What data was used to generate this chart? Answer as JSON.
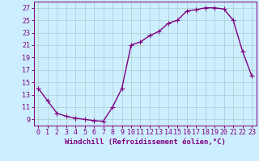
{
  "x": [
    0,
    1,
    2,
    3,
    4,
    5,
    6,
    7,
    8,
    9,
    10,
    11,
    12,
    13,
    14,
    15,
    16,
    17,
    18,
    19,
    20,
    21,
    22,
    23
  ],
  "y": [
    14,
    12,
    10,
    9.5,
    9.2,
    9.0,
    8.8,
    8.7,
    11.0,
    14.0,
    21.0,
    21.5,
    22.5,
    23.2,
    24.5,
    25.0,
    26.5,
    26.7,
    27.0,
    27.0,
    26.8,
    25.0,
    20.0,
    16.0
  ],
  "line_color": "#800080",
  "marker": "+",
  "marker_size": 4,
  "linewidth": 1.0,
  "xlabel": "Windchill (Refroidissement éolien,°C)",
  "xlim": [
    -0.5,
    23.5
  ],
  "ylim": [
    8.0,
    28.0
  ],
  "yticks": [
    9,
    11,
    13,
    15,
    17,
    19,
    21,
    23,
    25,
    27
  ],
  "xticks": [
    0,
    1,
    2,
    3,
    4,
    5,
    6,
    7,
    8,
    9,
    10,
    11,
    12,
    13,
    14,
    15,
    16,
    17,
    18,
    19,
    20,
    21,
    22,
    23
  ],
  "bg_color": "#cceeff",
  "grid_color": "#aacccc",
  "tick_color": "#800080",
  "axis_color": "#800080",
  "xlabel_color": "#800080",
  "xlabel_fontsize": 6.5,
  "tick_fontsize": 6.0
}
